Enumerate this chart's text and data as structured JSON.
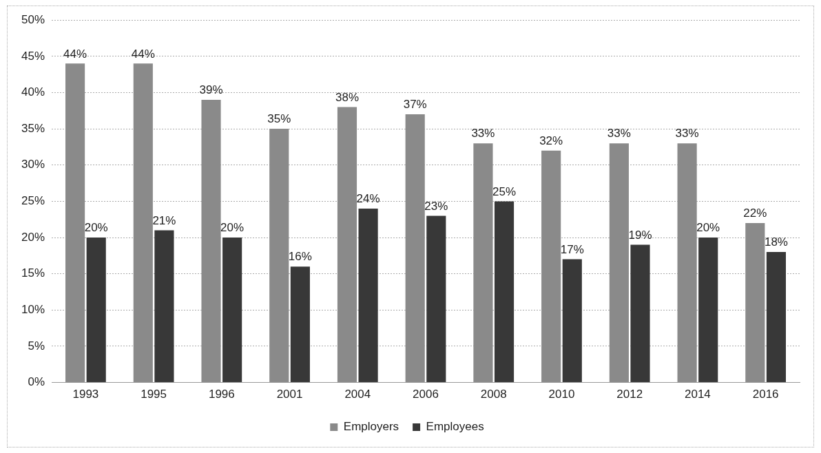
{
  "chart_data": {
    "type": "bar",
    "categories": [
      "1993",
      "1995",
      "1996",
      "2001",
      "2004",
      "2006",
      "2008",
      "2010",
      "2012",
      "2014",
      "2016"
    ],
    "series": [
      {
        "name": "Employers",
        "color": "#8a8a8a",
        "values": [
          44,
          44,
          39,
          35,
          38,
          37,
          33,
          32,
          33,
          33,
          22
        ],
        "value_labels": [
          "44%",
          "44%",
          "39%",
          "35%",
          "38%",
          "37%",
          "33%",
          "32%",
          "33%",
          "33%",
          "22%"
        ]
      },
      {
        "name": "Employees",
        "color": "#383838",
        "values": [
          20,
          21,
          20,
          16,
          24,
          23,
          25,
          17,
          19,
          20,
          18
        ],
        "value_labels": [
          "20%",
          "21%",
          "20%",
          "16%",
          "24%",
          "23%",
          "25%",
          "17%",
          "19%",
          "20%",
          "18%"
        ]
      }
    ],
    "ylim": [
      0,
      50
    ],
    "yticks": [
      {
        "value": 0,
        "label": "0%"
      },
      {
        "value": 5,
        "label": "5%"
      },
      {
        "value": 10,
        "label": "10%"
      },
      {
        "value": 15,
        "label": "15%"
      },
      {
        "value": 20,
        "label": "20%"
      },
      {
        "value": 25,
        "label": "25%"
      },
      {
        "value": 30,
        "label": "30%"
      },
      {
        "value": 35,
        "label": "35%"
      },
      {
        "value": 40,
        "label": "40%"
      },
      {
        "value": 45,
        "label": "45%"
      },
      {
        "value": 50,
        "label": "50%"
      }
    ],
    "grid": "y",
    "legend": "bottom"
  }
}
